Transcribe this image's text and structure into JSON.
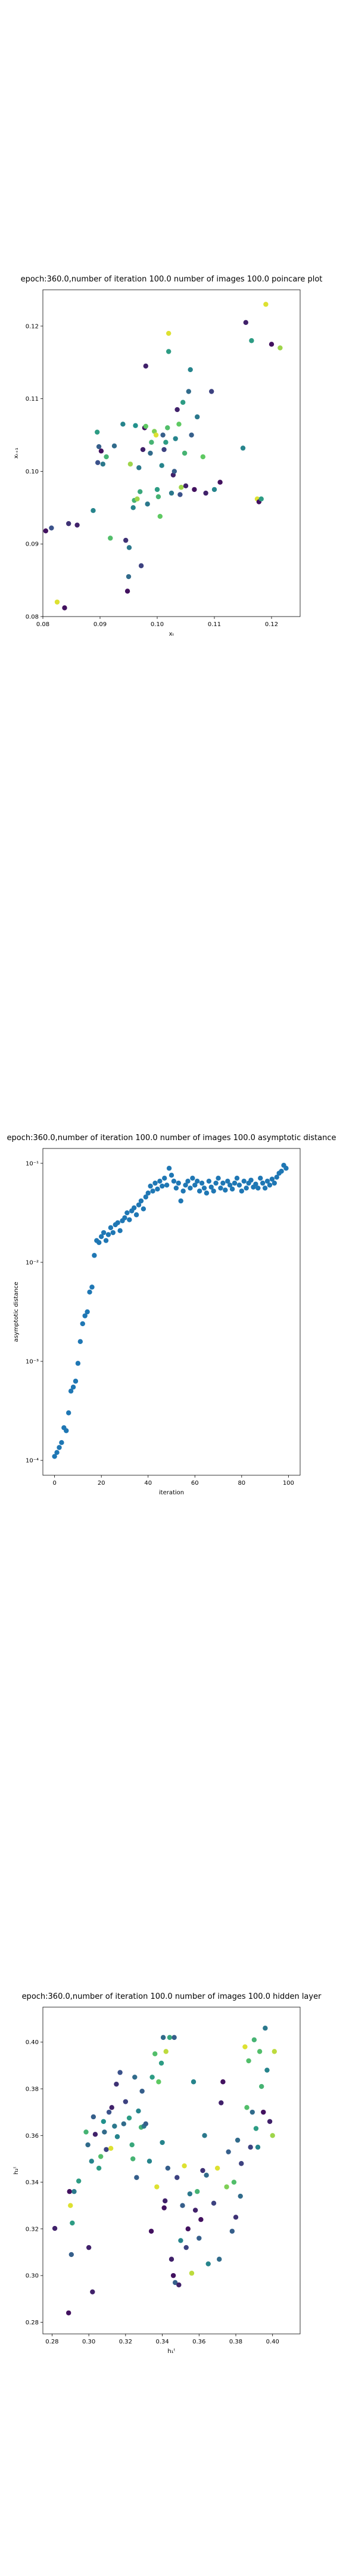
{
  "chart_data": [
    {
      "type": "scatter",
      "title": "epoch:360.0,number of iteration 100.0 number of images 100.0 poincare plot",
      "xlabel": "xₜ",
      "ylabel": "xₜ₊₁",
      "xlim": [
        0.08,
        0.125
      ],
      "ylim": [
        0.08,
        0.125
      ],
      "xticks": [
        0.08,
        0.09,
        0.1,
        0.11,
        0.12
      ],
      "xtick_labels": [
        "0.08",
        "0.09",
        "0.10",
        "0.11",
        "0.12"
      ],
      "yticks": [
        0.08,
        0.09,
        0.1,
        0.11,
        0.12
      ],
      "ytick_labels": [
        "0.08",
        "0.09",
        "0.10",
        "0.11",
        "0.12"
      ],
      "grid": false,
      "colormap": "viridis",
      "points": [
        [
          0.0805,
          0.0918,
          0.05
        ],
        [
          0.0815,
          0.0922,
          0.25
        ],
        [
          0.0825,
          0.082,
          0.95
        ],
        [
          0.0838,
          0.0812,
          0.05
        ],
        [
          0.0845,
          0.0928,
          0.15
        ],
        [
          0.086,
          0.0926,
          0.1
        ],
        [
          0.0888,
          0.0946,
          0.45
        ],
        [
          0.0895,
          0.1054,
          0.55
        ],
        [
          0.0896,
          0.1012,
          0.25
        ],
        [
          0.0898,
          0.1034,
          0.3
        ],
        [
          0.0902,
          0.1028,
          0.05
        ],
        [
          0.0905,
          0.101,
          0.4
        ],
        [
          0.0911,
          0.102,
          0.65
        ],
        [
          0.0918,
          0.0908,
          0.7
        ],
        [
          0.0925,
          0.1035,
          0.35
        ],
        [
          0.094,
          0.1065,
          0.45
        ],
        [
          0.0945,
          0.0905,
          0.15
        ],
        [
          0.0948,
          0.0835,
          0.05
        ],
        [
          0.095,
          0.0855,
          0.35
        ],
        [
          0.0951,
          0.0895,
          0.4
        ],
        [
          0.0953,
          0.101,
          0.85
        ],
        [
          0.0958,
          0.095,
          0.45
        ],
        [
          0.096,
          0.096,
          0.65
        ],
        [
          0.0962,
          0.1063,
          0.5
        ],
        [
          0.0965,
          0.0962,
          0.85
        ],
        [
          0.0968,
          0.1005,
          0.4
        ],
        [
          0.097,
          0.0972,
          0.6
        ],
        [
          0.0972,
          0.087,
          0.2
        ],
        [
          0.0975,
          0.103,
          0.1
        ],
        [
          0.0978,
          0.106,
          0.05
        ],
        [
          0.098,
          0.1062,
          0.75
        ],
        [
          0.098,
          0.1145,
          0.1
        ],
        [
          0.0983,
          0.0955,
          0.4
        ],
        [
          0.0988,
          0.1025,
          0.35
        ],
        [
          0.099,
          0.104,
          0.65
        ],
        [
          0.0995,
          0.1055,
          0.8
        ],
        [
          0.0998,
          0.105,
          0.95
        ],
        [
          0.1,
          0.0975,
          0.55
        ],
        [
          0.1002,
          0.0965,
          0.65
        ],
        [
          0.1005,
          0.0938,
          0.75
        ],
        [
          0.1008,
          0.1008,
          0.45
        ],
        [
          0.101,
          0.105,
          0.3
        ],
        [
          0.1012,
          0.103,
          0.2
        ],
        [
          0.1015,
          0.104,
          0.55
        ],
        [
          0.1018,
          0.106,
          0.7
        ],
        [
          0.102,
          0.1165,
          0.55
        ],
        [
          0.102,
          0.119,
          0.95
        ],
        [
          0.1025,
          0.097,
          0.4
        ],
        [
          0.1028,
          0.0995,
          0.1
        ],
        [
          0.103,
          0.1,
          0.3
        ],
        [
          0.1032,
          0.1045,
          0.45
        ],
        [
          0.1035,
          0.1085,
          0.1
        ],
        [
          0.1038,
          0.1065,
          0.75
        ],
        [
          0.104,
          0.0968,
          0.25
        ],
        [
          0.1042,
          0.0978,
          0.85
        ],
        [
          0.1045,
          0.1095,
          0.55
        ],
        [
          0.1048,
          0.1025,
          0.65
        ],
        [
          0.105,
          0.098,
          0.1
        ],
        [
          0.1055,
          0.111,
          0.35
        ],
        [
          0.1058,
          0.114,
          0.45
        ],
        [
          0.106,
          0.105,
          0.3
        ],
        [
          0.1065,
          0.0975,
          0.05
        ],
        [
          0.107,
          0.1075,
          0.4
        ],
        [
          0.108,
          0.102,
          0.75
        ],
        [
          0.1085,
          0.097,
          0.1
        ],
        [
          0.1095,
          0.111,
          0.2
        ],
        [
          0.11,
          0.0975,
          0.45
        ],
        [
          0.111,
          0.0985,
          0.05
        ],
        [
          0.115,
          0.1032,
          0.45
        ],
        [
          0.1155,
          0.1205,
          0.1
        ],
        [
          0.1165,
          0.118,
          0.55
        ],
        [
          0.1175,
          0.0962,
          0.95
        ],
        [
          0.1178,
          0.0958,
          0.05
        ],
        [
          0.1182,
          0.0962,
          0.55
        ],
        [
          0.119,
          0.123,
          0.95
        ],
        [
          0.12,
          0.1175,
          0.05
        ],
        [
          0.1215,
          0.117,
          0.85
        ]
      ]
    },
    {
      "type": "scatter",
      "title": "epoch:360.0,number of iteration 100.0  number of images 100.0 asymptotic distance",
      "xlabel": "iteration",
      "ylabel": "asymptotic distance",
      "yscale": "log",
      "xlim": [
        -5,
        105
      ],
      "ylim_log10": [
        -4.15,
        -0.85
      ],
      "xticks": [
        0,
        20,
        40,
        60,
        80,
        100
      ],
      "xtick_labels": [
        "0",
        "20",
        "40",
        "60",
        "80",
        "100"
      ],
      "yticks_log10": [
        -1,
        -2,
        -3,
        -4
      ],
      "ytick_labels": [
        "10⁻¹",
        "10⁻²",
        "10⁻³",
        "10⁻⁴"
      ],
      "grid": false,
      "color": "#1f77b4",
      "x": [
        0,
        1,
        2,
        3,
        4,
        5,
        6,
        7,
        8,
        9,
        10,
        11,
        12,
        13,
        14,
        15,
        16,
        17,
        18,
        19,
        20,
        21,
        22,
        23,
        24,
        25,
        26,
        27,
        28,
        29,
        30,
        31,
        32,
        33,
        34,
        35,
        36,
        37,
        38,
        39,
        40,
        41,
        42,
        43,
        44,
        45,
        46,
        47,
        48,
        49,
        50,
        51,
        52,
        53,
        54,
        55,
        56,
        57,
        58,
        59,
        60,
        61,
        62,
        63,
        64,
        65,
        66,
        67,
        68,
        69,
        70,
        71,
        72,
        73,
        74,
        75,
        76,
        77,
        78,
        79,
        80,
        81,
        82,
        83,
        84,
        85,
        86,
        87,
        88,
        89,
        90,
        91,
        92,
        93,
        94,
        95,
        96,
        97,
        98,
        99
      ],
      "y_log10": [
        -3.96,
        -3.92,
        -3.87,
        -3.82,
        -3.67,
        -3.7,
        -3.52,
        -3.3,
        -3.26,
        -3.2,
        -3.02,
        -2.8,
        -2.62,
        -2.54,
        -2.5,
        -2.3,
        -2.25,
        -1.93,
        -1.78,
        -1.8,
        -1.74,
        -1.7,
        -1.78,
        -1.72,
        -1.65,
        -1.7,
        -1.62,
        -1.6,
        -1.68,
        -1.58,
        -1.55,
        -1.5,
        -1.57,
        -1.48,
        -1.45,
        -1.52,
        -1.42,
        -1.38,
        -1.46,
        -1.34,
        -1.3,
        -1.23,
        -1.28,
        -1.2,
        -1.26,
        -1.18,
        -1.23,
        -1.15,
        -1.22,
        -1.05,
        -1.12,
        -1.18,
        -1.25,
        -1.2,
        -1.38,
        -1.28,
        -1.22,
        -1.18,
        -1.25,
        -1.15,
        -1.22,
        -1.18,
        -1.28,
        -1.2,
        -1.25,
        -1.3,
        -1.18,
        -1.24,
        -1.28,
        -1.2,
        -1.15,
        -1.25,
        -1.2,
        -1.27,
        -1.18,
        -1.22,
        -1.26,
        -1.2,
        -1.15,
        -1.22,
        -1.28,
        -1.18,
        -1.25,
        -1.2,
        -1.17,
        -1.24,
        -1.21,
        -1.25,
        -1.15,
        -1.2,
        -1.25,
        -1.18,
        -1.22,
        -1.16,
        -1.2,
        -1.14,
        -1.1,
        -1.08,
        -1.02,
        -1.05
      ]
    },
    {
      "type": "scatter",
      "title": "epoch:360.0,number of iteration 100.0  number of images 100.0 hidden layer",
      "xlabel": "h₁ᵗ",
      "ylabel": "h₂ᵗ",
      "xlim": [
        0.275,
        0.415
      ],
      "ylim": [
        0.275,
        0.415
      ],
      "xticks": [
        0.28,
        0.3,
        0.32,
        0.34,
        0.36,
        0.38,
        0.4
      ],
      "xtick_labels": [
        "0.28",
        "0.30",
        "0.32",
        "0.34",
        "0.36",
        "0.38",
        "0.40"
      ],
      "yticks": [
        0.28,
        0.3,
        0.32,
        0.34,
        0.36,
        0.38,
        0.4
      ],
      "ytick_labels": [
        "0.28",
        "0.30",
        "0.32",
        "0.34",
        "0.36",
        "0.38",
        "0.40"
      ],
      "grid": false,
      "colormap": "viridis",
      "points": [
        [
          0.2815,
          0.3202,
          0.1
        ],
        [
          0.289,
          0.284,
          0.05
        ],
        [
          0.2895,
          0.336,
          0.05
        ],
        [
          0.29,
          0.33,
          0.95
        ],
        [
          0.2905,
          0.309,
          0.3
        ],
        [
          0.291,
          0.3225,
          0.55
        ],
        [
          0.292,
          0.336,
          0.4
        ],
        [
          0.2945,
          0.3405,
          0.55
        ],
        [
          0.2985,
          0.3615,
          0.65
        ],
        [
          0.2995,
          0.356,
          0.35
        ],
        [
          0.3,
          0.312,
          0.1
        ],
        [
          0.3015,
          0.349,
          0.45
        ],
        [
          0.302,
          0.293,
          0.1
        ],
        [
          0.3025,
          0.368,
          0.3
        ],
        [
          0.3035,
          0.3605,
          0.1
        ],
        [
          0.3055,
          0.346,
          0.55
        ],
        [
          0.3065,
          0.351,
          0.7
        ],
        [
          0.308,
          0.366,
          0.5
        ],
        [
          0.3085,
          0.3615,
          0.35
        ],
        [
          0.3095,
          0.354,
          0.2
        ],
        [
          0.311,
          0.37,
          0.25
        ],
        [
          0.312,
          0.3545,
          0.95
        ],
        [
          0.3125,
          0.372,
          0.1
        ],
        [
          0.314,
          0.364,
          0.4
        ],
        [
          0.315,
          0.382,
          0.15
        ],
        [
          0.3155,
          0.3595,
          0.45
        ],
        [
          0.317,
          0.387,
          0.25
        ],
        [
          0.319,
          0.365,
          0.35
        ],
        [
          0.32,
          0.3745,
          0.2
        ],
        [
          0.322,
          0.3675,
          0.55
        ],
        [
          0.3235,
          0.356,
          0.6
        ],
        [
          0.324,
          0.35,
          0.65
        ],
        [
          0.325,
          0.385,
          0.35
        ],
        [
          0.326,
          0.342,
          0.3
        ],
        [
          0.327,
          0.3705,
          0.45
        ],
        [
          0.3285,
          0.3635,
          0.65
        ],
        [
          0.329,
          0.379,
          0.3
        ],
        [
          0.33,
          0.364,
          0.4
        ],
        [
          0.331,
          0.365,
          0.3
        ],
        [
          0.333,
          0.349,
          0.45
        ],
        [
          0.334,
          0.319,
          0.05
        ],
        [
          0.3345,
          0.385,
          0.55
        ],
        [
          0.336,
          0.395,
          0.7
        ],
        [
          0.337,
          0.338,
          0.95
        ],
        [
          0.338,
          0.383,
          0.75
        ],
        [
          0.3395,
          0.391,
          0.55
        ],
        [
          0.34,
          0.357,
          0.45
        ],
        [
          0.3405,
          0.402,
          0.35
        ],
        [
          0.341,
          0.329,
          0.05
        ],
        [
          0.3415,
          0.332,
          0.1
        ],
        [
          0.342,
          0.396,
          0.9
        ],
        [
          0.343,
          0.346,
          0.3
        ],
        [
          0.344,
          0.402,
          0.6
        ],
        [
          0.345,
          0.307,
          0.1
        ],
        [
          0.346,
          0.3,
          0.05
        ],
        [
          0.3465,
          0.402,
          0.3
        ],
        [
          0.347,
          0.297,
          0.3
        ],
        [
          0.348,
          0.342,
          0.2
        ],
        [
          0.349,
          0.296,
          0.1
        ],
        [
          0.35,
          0.315,
          0.45
        ],
        [
          0.351,
          0.33,
          0.3
        ],
        [
          0.352,
          0.347,
          0.95
        ],
        [
          0.353,
          0.312,
          0.2
        ],
        [
          0.354,
          0.32,
          0.05
        ],
        [
          0.355,
          0.335,
          0.4
        ],
        [
          0.356,
          0.301,
          0.9
        ],
        [
          0.357,
          0.383,
          0.45
        ],
        [
          0.358,
          0.328,
          0.1
        ],
        [
          0.359,
          0.336,
          0.65
        ],
        [
          0.36,
          0.316,
          0.3
        ],
        [
          0.361,
          0.324,
          0.05
        ],
        [
          0.362,
          0.345,
          0.15
        ],
        [
          0.363,
          0.36,
          0.4
        ],
        [
          0.364,
          0.343,
          0.35
        ],
        [
          0.365,
          0.305,
          0.45
        ],
        [
          0.368,
          0.331,
          0.2
        ],
        [
          0.37,
          0.346,
          0.95
        ],
        [
          0.371,
          0.307,
          0.35
        ],
        [
          0.372,
          0.374,
          0.1
        ],
        [
          0.373,
          0.383,
          0.05
        ],
        [
          0.375,
          0.338,
          0.8
        ],
        [
          0.376,
          0.353,
          0.3
        ],
        [
          0.378,
          0.319,
          0.3
        ],
        [
          0.379,
          0.34,
          0.7
        ],
        [
          0.38,
          0.325,
          0.15
        ],
        [
          0.381,
          0.358,
          0.35
        ],
        [
          0.3825,
          0.334,
          0.35
        ],
        [
          0.383,
          0.348,
          0.2
        ],
        [
          0.385,
          0.398,
          0.95
        ],
        [
          0.386,
          0.372,
          0.7
        ],
        [
          0.387,
          0.392,
          0.7
        ],
        [
          0.388,
          0.355,
          0.2
        ],
        [
          0.389,
          0.37,
          0.35
        ],
        [
          0.39,
          0.401,
          0.65
        ],
        [
          0.391,
          0.363,
          0.55
        ],
        [
          0.392,
          0.355,
          0.45
        ],
        [
          0.393,
          0.396,
          0.7
        ],
        [
          0.394,
          0.381,
          0.65
        ],
        [
          0.395,
          0.37,
          0.05
        ],
        [
          0.396,
          0.406,
          0.4
        ],
        [
          0.397,
          0.388,
          0.45
        ],
        [
          0.3985,
          0.366,
          0.1
        ],
        [
          0.4,
          0.36,
          0.85
        ],
        [
          0.401,
          0.396,
          0.9
        ]
      ]
    }
  ]
}
